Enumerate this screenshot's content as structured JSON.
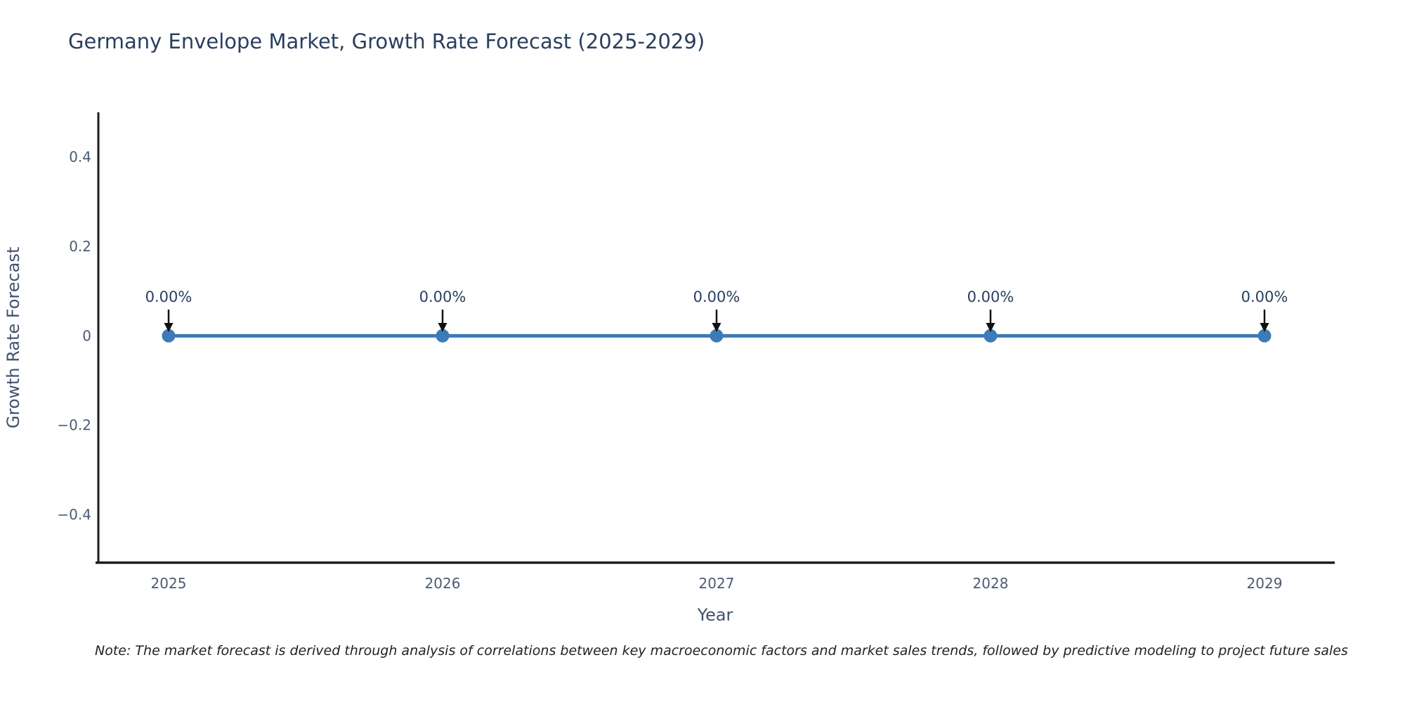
{
  "title": "Germany Envelope Market, Growth Rate Forecast (2025-2029)",
  "note": "Note: The market forecast is derived through analysis of correlations between key macroeconomic factors and market sales trends, followed by predictive modeling to project future sales",
  "chart_data": {
    "type": "line",
    "title": "Germany Envelope Market, Growth Rate Forecast (2025-2029)",
    "xlabel": "Year",
    "ylabel": "Growth Rate Forecast",
    "categories": [
      "2025",
      "2026",
      "2027",
      "2028",
      "2029"
    ],
    "series": [
      {
        "name": "Growth Rate Forecast",
        "values": [
          0,
          0,
          0,
          0,
          0
        ]
      }
    ],
    "point_labels": [
      "0.00%",
      "0.00%",
      "0.00%",
      "0.00%",
      "0.00%"
    ],
    "y_ticks": [
      0.4,
      0.2,
      0,
      -0.2,
      -0.4
    ],
    "y_tick_labels": [
      "0.4",
      "0.2",
      "0",
      "−0.2",
      "−0.4"
    ],
    "ylim": [
      -0.51,
      0.5
    ],
    "grid": false,
    "legend_position": "none",
    "annotations": "arrow-down-to-each-point",
    "colors": {
      "line": "#3d7ab8",
      "marker": "#3d7ab8",
      "axis": "#1c1c1c",
      "arrow": "#111111",
      "tick_text": "#4c5b72",
      "axis_title_text": "#42526e",
      "title_text": "#2a3f5f",
      "note_text": "#222222",
      "background": "#ffffff"
    }
  }
}
